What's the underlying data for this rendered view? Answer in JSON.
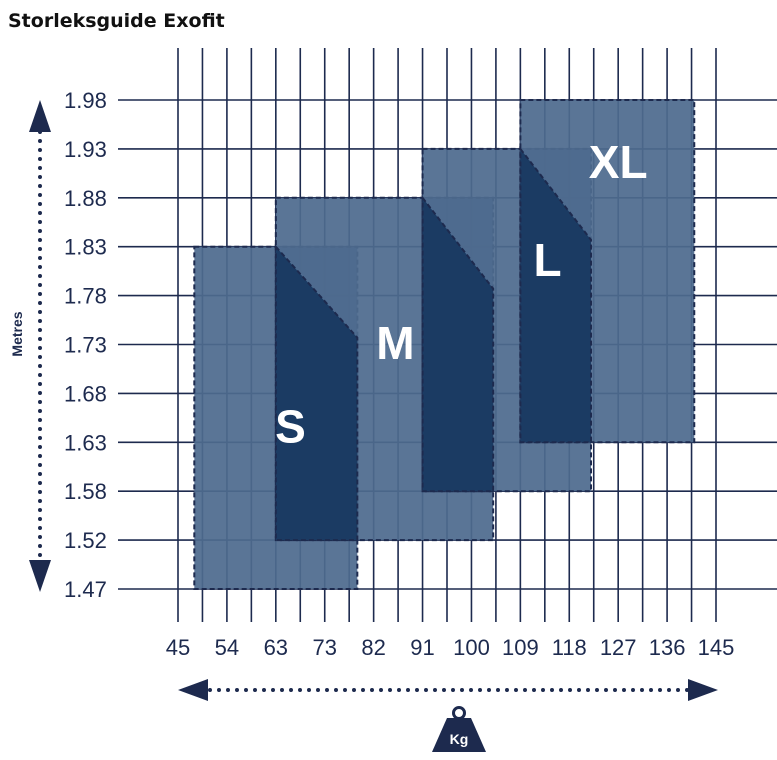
{
  "title": "Storleksguide Exofit",
  "chart_data": {
    "type": "size-region-chart",
    "x_axis_unit_label": "Kg",
    "y_axis_title": "Metres",
    "x_ticks": [
      "45",
      "54",
      "63",
      "73",
      "82",
      "91",
      "100",
      "109",
      "118",
      "127",
      "136",
      "145"
    ],
    "y_ticks": [
      "1.47",
      "1.52",
      "1.58",
      "1.63",
      "1.68",
      "1.73",
      "1.78",
      "1.83",
      "1.88",
      "1.93",
      "1.98"
    ],
    "xlim": [
      45,
      145
    ],
    "ylim": [
      1.47,
      1.98
    ],
    "grid": true,
    "sizes": [
      {
        "label": "S",
        "weight_min": 48,
        "weight_max": 79,
        "height_min": 1.47,
        "height_max": 1.83
      },
      {
        "label": "M",
        "weight_min": 63,
        "weight_max": 104,
        "height_min": 1.52,
        "height_max": 1.88
      },
      {
        "label": "L",
        "weight_min": 91,
        "weight_max": 122,
        "height_min": 1.58,
        "height_max": 1.93
      },
      {
        "label": "XL",
        "weight_min": 109,
        "weight_max": 141,
        "height_min": 1.63,
        "height_max": 1.98
      }
    ],
    "overlaps": [
      {
        "weight_min": 63,
        "weight_max": 79,
        "height_min": 1.52,
        "height_max": 1.83
      },
      {
        "weight_min": 91,
        "weight_max": 104,
        "height_min": 1.58,
        "height_max": 1.88
      },
      {
        "weight_min": 109,
        "weight_max": 122,
        "height_min": 1.63,
        "height_max": 1.93
      }
    ],
    "colors": {
      "grid": "#1d2a4e",
      "region": "#4d6b8e",
      "overlap": "#1b3b63",
      "label": "#ffffff",
      "axis": "#1d2a4e"
    }
  }
}
